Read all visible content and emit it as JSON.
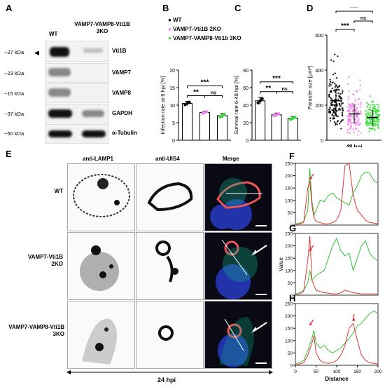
{
  "panels": {
    "A": "A",
    "B": "B",
    "C": "C",
    "D": "D",
    "E": "E",
    "F": "F",
    "G": "G",
    "H": "H"
  },
  "blot": {
    "lane_wt": "WT",
    "lane_ko": "VAMP7-VAMP8-Vti1B\n3KO",
    "rows": [
      {
        "mw": "~27 kDa",
        "protein": "Vti1B"
      },
      {
        "mw": "~23 kDa",
        "protein": "VAMP7"
      },
      {
        "mw": "~15 kDa",
        "protein": "VAMP8"
      },
      {
        "mw": "~37 kDa",
        "protein": "GAPDH"
      },
      {
        "mw": "~50 kDa",
        "protein": "α-Tubulin"
      }
    ]
  },
  "legend": {
    "items": [
      {
        "label": "WT",
        "color": "#000000"
      },
      {
        "label": "VAMP7-Vti1B 2KO",
        "color": "#ee82ee"
      },
      {
        "label": "VAMP7-VAMP8-Vti1b 3KO",
        "color": "#33dd33"
      }
    ]
  },
  "chart_data": [
    {
      "type": "bar",
      "panel": "B",
      "ylabel": "Infection rate at 6 hpi [%]",
      "ylim": [
        0,
        20
      ],
      "yticks": [
        "0",
        "5",
        "10",
        "15",
        "20"
      ],
      "categories": [
        "WT",
        "VAMP7-Vti1B 2KO",
        "VAMP7-VAMP8-Vti1b 3KO"
      ],
      "values": [
        10.5,
        7.9,
        7.0
      ],
      "errors": [
        0.6,
        0.4,
        0.6
      ],
      "significance": [
        {
          "pair": [
            "WT",
            "VAMP7-Vti1B 2KO"
          ],
          "label": "**"
        },
        {
          "pair": [
            "VAMP7-Vti1B 2KO",
            "VAMP7-VAMP8-Vti1b 3KO"
          ],
          "label": "ns"
        },
        {
          "pair": [
            "WT",
            "VAMP7-VAMP8-Vti1b 3KO"
          ],
          "label": "***"
        }
      ]
    },
    {
      "type": "bar",
      "panel": "C",
      "ylabel": "Survival rate 6-48 hpi [%]",
      "ylim": [
        0,
        80
      ],
      "yticks": [
        "0",
        "20",
        "40",
        "60",
        "80"
      ],
      "categories": [
        "WT",
        "VAMP7-Vti1B 2KO",
        "VAMP7-VAMP8-Vti1b 3KO"
      ],
      "values": [
        45,
        29,
        25
      ],
      "errors": [
        4,
        2,
        2
      ],
      "significance": [
        {
          "pair": [
            "WT",
            "VAMP7-Vti1B 2KO"
          ],
          "label": "**"
        },
        {
          "pair": [
            "VAMP7-Vti1B 2KO",
            "VAMP7-VAMP8-Vti1b 3KO"
          ],
          "label": "ns"
        },
        {
          "pair": [
            "WT",
            "VAMP7-VAMP8-Vti1b 3KO"
          ],
          "label": "***"
        }
      ]
    },
    {
      "type": "scatter",
      "panel": "D",
      "ylabel": "Parasite size [μm²]",
      "xlabel": "48 hpi",
      "ylim": [
        0,
        600
      ],
      "yticks": [
        "0",
        "200",
        "400",
        "600"
      ],
      "categories": [
        "WT",
        "VAMP7-Vti1B 2KO",
        "VAMP7-VAMP8-Vti1b 3KO"
      ],
      "means": [
        225,
        150,
        130
      ],
      "sd": [
        70,
        55,
        45
      ],
      "significance": [
        {
          "pair": [
            "WT",
            "VAMP7-Vti1B 2KO"
          ],
          "label": "***"
        },
        {
          "pair": [
            "VAMP7-Vti1B 2KO",
            "VAMP7-VAMP8-Vti1b 3KO"
          ],
          "label": "ns"
        },
        {
          "pair": [
            "WT",
            "VAMP7-VAMP8-Vti1b 3KO"
          ],
          "label": "***"
        }
      ]
    },
    {
      "type": "line",
      "panel": "F",
      "ylim": [
        0,
        250
      ],
      "yticks": [
        "0",
        "50",
        "100",
        "150",
        "200",
        "250"
      ],
      "xlim": [
        0,
        200
      ],
      "series": [
        {
          "color": "#22bb22",
          "x": [
            0,
            10,
            20,
            30,
            35,
            40,
            45,
            50,
            60,
            70,
            80,
            90,
            100,
            110,
            120,
            130,
            140,
            150,
            160,
            170,
            180,
            190,
            200
          ],
          "y": [
            5,
            8,
            15,
            60,
            230,
            100,
            40,
            60,
            100,
            95,
            120,
            130,
            110,
            100,
            90,
            80,
            130,
            160,
            200,
            215,
            210,
            180,
            170
          ]
        },
        {
          "color": "#dd2222",
          "x": [
            0,
            10,
            20,
            30,
            35,
            40,
            45,
            50,
            60,
            70,
            80,
            90,
            100,
            110,
            120,
            130,
            140,
            150,
            160,
            170,
            180,
            190,
            200
          ],
          "y": [
            0,
            5,
            10,
            150,
            180,
            80,
            30,
            15,
            10,
            5,
            5,
            10,
            20,
            60,
            240,
            250,
            120,
            60,
            40,
            20,
            10,
            8,
            5
          ]
        }
      ]
    },
    {
      "type": "line",
      "panel": "G",
      "ylabel": "Value",
      "ylim": [
        0,
        250
      ],
      "yticks": [
        "0",
        "50",
        "100",
        "150",
        "200",
        "250"
      ],
      "xlim": [
        0,
        200
      ],
      "series": [
        {
          "color": "#22bb22",
          "x": [
            0,
            10,
            20,
            30,
            35,
            40,
            50,
            60,
            70,
            80,
            90,
            100,
            110,
            120,
            130,
            140,
            150,
            160,
            170,
            180,
            190,
            200
          ],
          "y": [
            5,
            10,
            20,
            50,
            100,
            60,
            80,
            90,
            100,
            150,
            200,
            230,
            180,
            160,
            170,
            100,
            150,
            200,
            220,
            170,
            150,
            140
          ]
        },
        {
          "color": "#dd2222",
          "x": [
            0,
            10,
            20,
            30,
            35,
            40,
            50,
            60,
            70,
            80,
            90,
            100,
            110,
            120,
            130,
            140,
            150,
            160,
            170,
            180,
            190,
            200
          ],
          "y": [
            0,
            5,
            15,
            140,
            240,
            60,
            20,
            15,
            10,
            8,
            5,
            5,
            10,
            20,
            15,
            10,
            8,
            5,
            5,
            5,
            5,
            5
          ]
        }
      ]
    },
    {
      "type": "line",
      "panel": "H",
      "xlabel": "Distance",
      "ylim": [
        0,
        250
      ],
      "yticks": [
        "0",
        "50",
        "100",
        "150",
        "200",
        "250"
      ],
      "xticks": [
        "0",
        "50",
        "100",
        "150",
        "200"
      ],
      "xlim": [
        0,
        200
      ],
      "series": [
        {
          "color": "#22bb22",
          "x": [
            0,
            10,
            20,
            30,
            40,
            45,
            50,
            60,
            70,
            80,
            90,
            100,
            110,
            120,
            130,
            140,
            150,
            160,
            170,
            180,
            190,
            200
          ],
          "y": [
            5,
            10,
            20,
            60,
            110,
            140,
            90,
            70,
            80,
            60,
            50,
            60,
            70,
            90,
            110,
            130,
            160,
            170,
            190,
            210,
            220,
            210
          ]
        },
        {
          "color": "#dd2222",
          "x": [
            0,
            10,
            20,
            30,
            40,
            45,
            50,
            60,
            70,
            80,
            90,
            100,
            110,
            120,
            130,
            140,
            150,
            160,
            170,
            180,
            190,
            200
          ],
          "y": [
            0,
            5,
            10,
            40,
            90,
            120,
            50,
            20,
            10,
            8,
            10,
            20,
            40,
            80,
            150,
            170,
            100,
            40,
            20,
            10,
            8,
            5
          ]
        }
      ]
    }
  ],
  "microscopy": {
    "col_headers": [
      "anti-LAMP1",
      "anti-UIS4",
      "Merge"
    ],
    "col_colors": [
      "#22aa22",
      "#cc2200",
      "#000000"
    ],
    "row_headers": [
      "WT",
      "VAMP7-Vti1B\n2KO",
      "VAMP7-VAMP8-Vti1B\n3KO"
    ],
    "timepoint": "24 hpi"
  }
}
